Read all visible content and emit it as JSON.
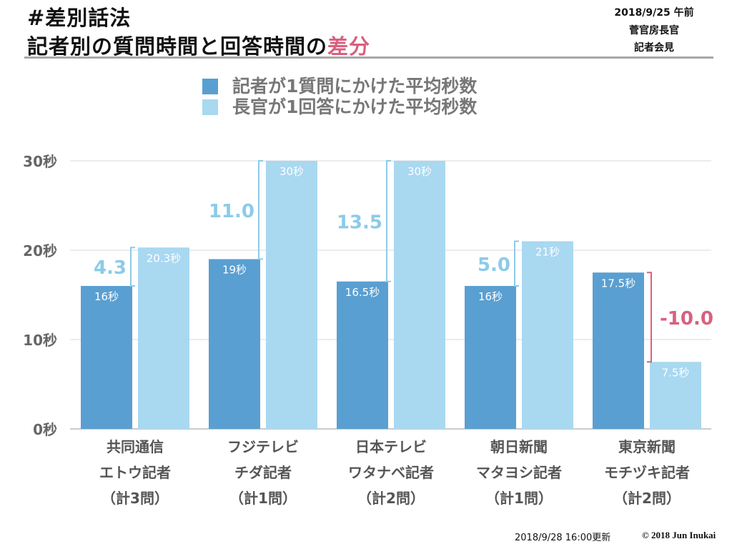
{
  "header": {
    "hashtag_title": "#差別話法",
    "title_main": "記者別の質問時間と回答時間の",
    "title_accent": "差分",
    "meta_date": "2018/9/25 午前",
    "meta_person": "菅官房長官",
    "meta_event": "記者会見"
  },
  "colors": {
    "reporter": "#5a9fd1",
    "secretary": "#a9d8f1",
    "diff_positive": "#8ccbe8",
    "diff_negative": "#d9607f",
    "grid": "#d9d9d9"
  },
  "chart_data": {
    "type": "bar",
    "title": "記者別の質問時間と回答時間の差分",
    "legend_position": "top-center",
    "legend": [
      "記者が1質問にかけた平均秒数",
      "長官が1回答にかけた平均秒数"
    ],
    "ylim": [
      0,
      30
    ],
    "yticks": [
      {
        "value": 0,
        "label": "0秒"
      },
      {
        "value": 10,
        "label": "10秒"
      },
      {
        "value": 20,
        "label": "20秒"
      },
      {
        "value": 30,
        "label": "30秒"
      }
    ],
    "grid": true,
    "categories": [
      {
        "line1": "共同通信",
        "line2": "エトウ記者",
        "line3": "（計3問）"
      },
      {
        "line1": "フジテレビ",
        "line2": "チダ記者",
        "line3": "（計1問）"
      },
      {
        "line1": "日本テレビ",
        "line2": "ワタナベ記者",
        "line3": "（計2問）"
      },
      {
        "line1": "朝日新聞",
        "line2": "マタヨシ記者",
        "line3": "（計1問）"
      },
      {
        "line1": "東京新聞",
        "line2": "モチヅキ記者",
        "line3": "（計2問）"
      }
    ],
    "series": [
      {
        "name": "記者が1質問にかけた平均秒数",
        "values": [
          16,
          19,
          16.5,
          16,
          17.5
        ],
        "labels": [
          "16秒",
          "19秒",
          "16.5秒",
          "16秒",
          "17.5秒"
        ]
      },
      {
        "name": "長官が1回答にかけた平均秒数",
        "values": [
          20.3,
          30,
          30,
          21,
          7.5
        ],
        "labels": [
          "20.3秒",
          "30秒",
          "30秒",
          "21秒",
          "7.5秒"
        ]
      }
    ],
    "differences": [
      4.3,
      11.0,
      13.5,
      5.0,
      -10.0
    ],
    "difference_labels": [
      "4.3",
      "11.0",
      "13.5",
      "5.0",
      "-10.0"
    ]
  },
  "footer": {
    "updated": "2018/9/28 16:00更新",
    "copyright": "© 2018 Jun Inukai"
  }
}
